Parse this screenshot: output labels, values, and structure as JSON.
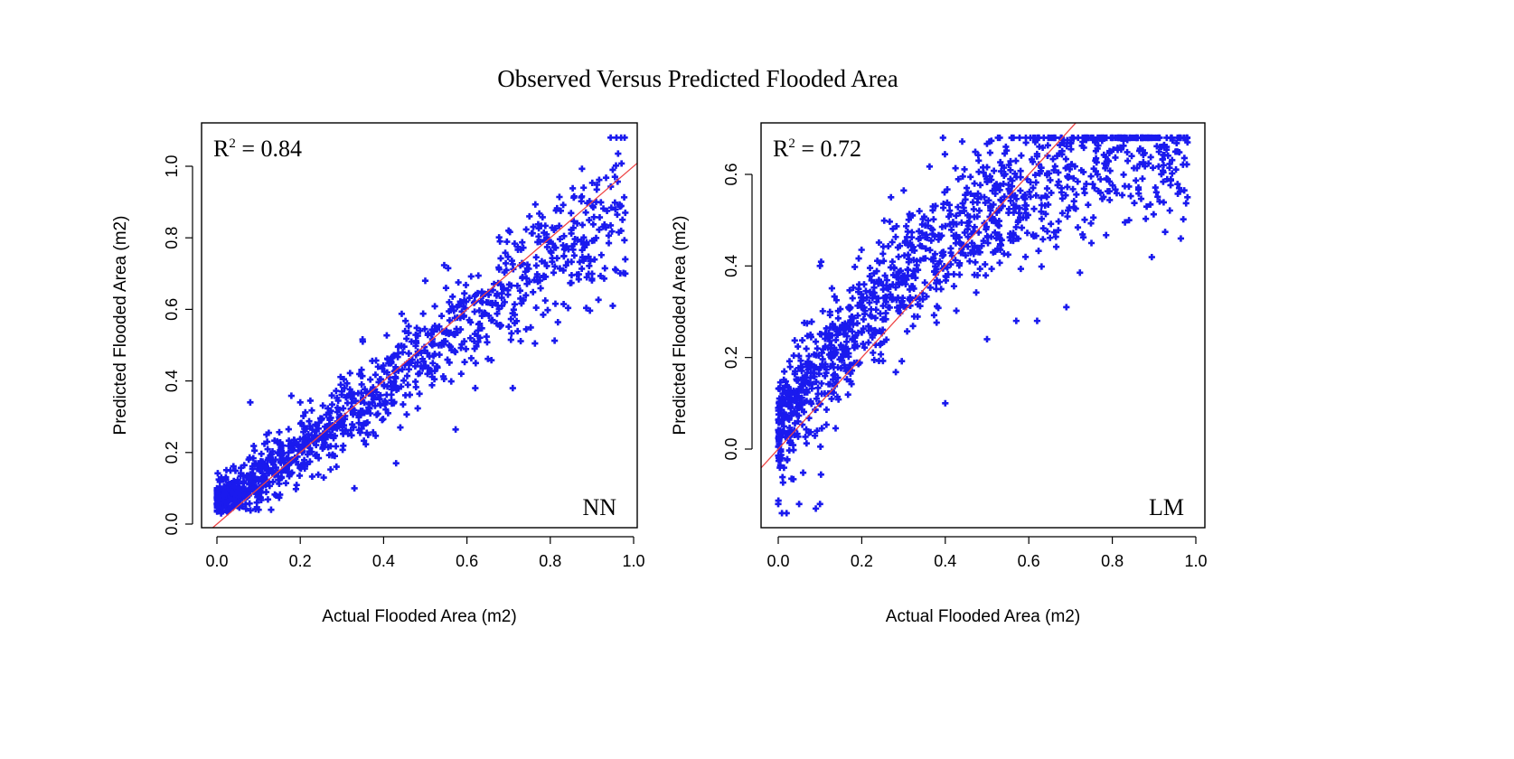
{
  "figure": {
    "title": "Observed Versus Predicted Flooded Area"
  },
  "chart_data": [
    {
      "type": "scatter",
      "id": "nn",
      "panel_label": "NN",
      "r2_label": "R",
      "r2_sup": "2",
      "r2_value": " = 0.84",
      "title": "",
      "xlabel": "Actual Flooded Area (m2)",
      "ylabel": "Predicted Flooded Area (m2)",
      "xlim": [
        -0.02,
        1.02
      ],
      "ylim": [
        -0.02,
        1.1
      ],
      "xticks": [
        "0.0",
        "0.2",
        "0.4",
        "0.6",
        "0.8",
        "1.0"
      ],
      "yticks": [
        "0.0",
        "0.2",
        "0.4",
        "0.6",
        "0.8",
        "1.0"
      ],
      "fit_line": {
        "intercept": 0.0,
        "slope": 1.0
      },
      "series_color": "#1a1aee",
      "fit_color": "#ee4444",
      "trend": {
        "slope": 0.88,
        "intercept": 0.04,
        "noise": 0.065,
        "y_min": 0.03,
        "y_max": 1.08
      },
      "n_points": 1200,
      "points": [
        [
          0.97,
          1.08
        ],
        [
          0.95,
          0.99
        ],
        [
          0.91,
          0.9
        ],
        [
          0.98,
          0.87
        ],
        [
          0.98,
          0.74
        ],
        [
          0.98,
          0.7
        ],
        [
          0.95,
          0.61
        ],
        [
          0.88,
          0.94
        ],
        [
          0.75,
          0.86
        ],
        [
          0.7,
          0.82
        ],
        [
          0.62,
          0.38
        ],
        [
          0.71,
          0.38
        ],
        [
          0.02,
          0.06
        ],
        [
          0.05,
          0.05
        ],
        [
          0.1,
          0.04
        ],
        [
          0.01,
          0.03
        ],
        [
          0.13,
          0.04
        ],
        [
          0.35,
          0.51
        ],
        [
          0.5,
          0.68
        ],
        [
          0.33,
          0.1
        ],
        [
          0.2,
          0.34
        ],
        [
          0.08,
          0.34
        ],
        [
          0.43,
          0.17
        ]
      ],
      "x_dist": {
        "min": 0.0,
        "max": 0.98,
        "skew": 1.6
      }
    },
    {
      "type": "scatter",
      "id": "lm",
      "panel_label": "LM",
      "r2_label": "R",
      "r2_sup": "2",
      "r2_value": " = 0.72",
      "title": "",
      "xlabel": "Actual Flooded Area (m2)",
      "ylabel": "Predicted Flooded Area (m2)",
      "xlim": [
        -0.04,
        1.02
      ],
      "ylim": [
        -0.18,
        0.7
      ],
      "xticks": [
        "0.0",
        "0.2",
        "0.4",
        "0.6",
        "0.8",
        "1.0"
      ],
      "yticks": [
        "0.0",
        "0.2",
        "0.4",
        "0.6"
      ],
      "fit_line": {
        "intercept": 0.0,
        "slope": 1.0
      },
      "series_color": "#1a1aee",
      "fit_color": "#ee4444",
      "trend": {
        "curve": "concave",
        "a": 0.06,
        "b": 1.25,
        "c": -0.65,
        "noise": 0.07,
        "y_min": -0.14,
        "y_max": 0.68
      },
      "n_points": 1300,
      "points": [
        [
          0.98,
          0.67
        ],
        [
          0.96,
          0.57
        ],
        [
          0.98,
          0.55
        ],
        [
          0.93,
          0.66
        ],
        [
          0.83,
          0.68
        ],
        [
          0.76,
          0.67
        ],
        [
          0.62,
          0.28
        ],
        [
          0.69,
          0.31
        ],
        [
          0.57,
          0.28
        ],
        [
          0.5,
          0.24
        ],
        [
          0.4,
          0.1
        ],
        [
          0.1,
          -0.12
        ],
        [
          0.09,
          -0.13
        ],
        [
          0.05,
          -0.12
        ],
        [
          0.02,
          -0.14
        ],
        [
          0.0,
          -0.12
        ],
        [
          0.0,
          0.09
        ],
        [
          0.05,
          0.13
        ],
        [
          0.1,
          0.4
        ],
        [
          0.27,
          0.55
        ],
        [
          0.48,
          0.63
        ],
        [
          0.75,
          0.45
        ],
        [
          0.84,
          0.5
        ]
      ],
      "x_dist": {
        "min": 0.0,
        "max": 0.98,
        "skew": 1.45
      }
    }
  ]
}
